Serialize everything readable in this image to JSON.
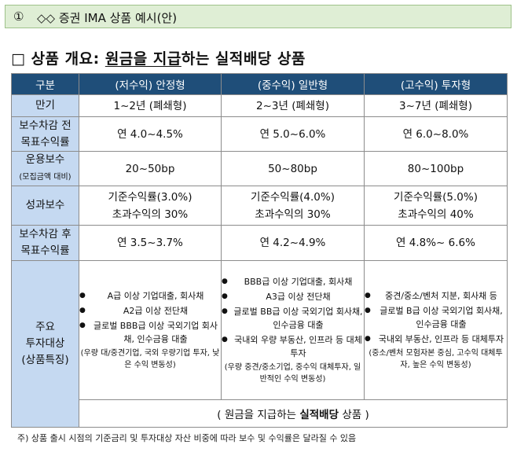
{
  "header": {
    "box": "①",
    "title": "◇◇ 증권 IMA 상품 예시(안)"
  },
  "section": {
    "prefix": "□ 상품 개요: ",
    "underlined": "원금을 지급",
    "suffix": "하는 실적배당 상품"
  },
  "table": {
    "headers": [
      "구분",
      "(저수익) 안정형",
      "(중수익) 일반형",
      "(고수익) 투자형"
    ],
    "rows": {
      "maturity": {
        "label": "만기",
        "values": [
          "1~2년 (폐쇄형)",
          "2~3년 (폐쇄형)",
          "3~7년 (폐쇄형)"
        ]
      },
      "target_before": {
        "label1": "보수차감 전",
        "label2": "목표수익률",
        "values": [
          "연 4.0~4.5%",
          "연 5.0~6.0%",
          "연 6.0~8.0%"
        ]
      },
      "fee": {
        "label1": "운용보수",
        "label2": "(모집금액 대비)",
        "values": [
          "20~50bp",
          "50~80bp",
          "80~100bp"
        ]
      },
      "perf_fee": {
        "label": "성과보수",
        "values": [
          [
            "기준수익률(3.0%)",
            "초과수익의 30%"
          ],
          [
            "기준수익률(4.0%)",
            "초과수익의 30%"
          ],
          [
            "기준수익률(5.0%)",
            "초과수익의 40%"
          ]
        ]
      },
      "target_after": {
        "label1": "보수차감 후",
        "label2": "목표수익률",
        "values": [
          "연 3.5~3.7%",
          "연 4.2~4.9%",
          "연 4.8%~ 6.6%"
        ]
      },
      "investment": {
        "label1": "주요",
        "label2": "투자대상",
        "label3": "(상품특징)",
        "cols": [
          {
            "items": [
              "A급 이상 기업대출, 회사채",
              "A2급 이상 전단채",
              "글로벌 BBB급 이상 국외기업 회사채, 인수금융 대출"
            ],
            "note": "(우량 대/중견기업, 국외 우량기업 투자, 낮은 수익 변동성)"
          },
          {
            "items": [
              "BBB급 이상 기업대출, 회사채",
              "A3급 이상 전단채",
              "글로벌 BB급 이상 국외기업 회사채, 인수금융 대출",
              "국내외 우량 부동산, 인프라 등 대체투자"
            ],
            "note": "(우량 중견/중소기업, 중수익 대체투자, 일반적인 수익 변동성)"
          },
          {
            "items": [
              "중견/중소/벤처 지분, 회사채 등",
              "글로벌 B급 이상 국외기업 회사채, 인수금융 대출",
              "국내외 부동산, 인프라 등 대체투자"
            ],
            "note": "(중소/벤처 모험자본 중심, 고수익 대체투자, 높은 수익 변동성)"
          }
        ]
      }
    },
    "bottom": {
      "open": "( ",
      "normal1": "원금을 지급하는 ",
      "bold": "실적배당",
      "normal2": " 상품 )"
    }
  },
  "footnote": "주) 상품 출시 시점의 기준금리 및 투자대상 자산 비중에 따라 보수 및 수익률은 달라질 수 있음"
}
